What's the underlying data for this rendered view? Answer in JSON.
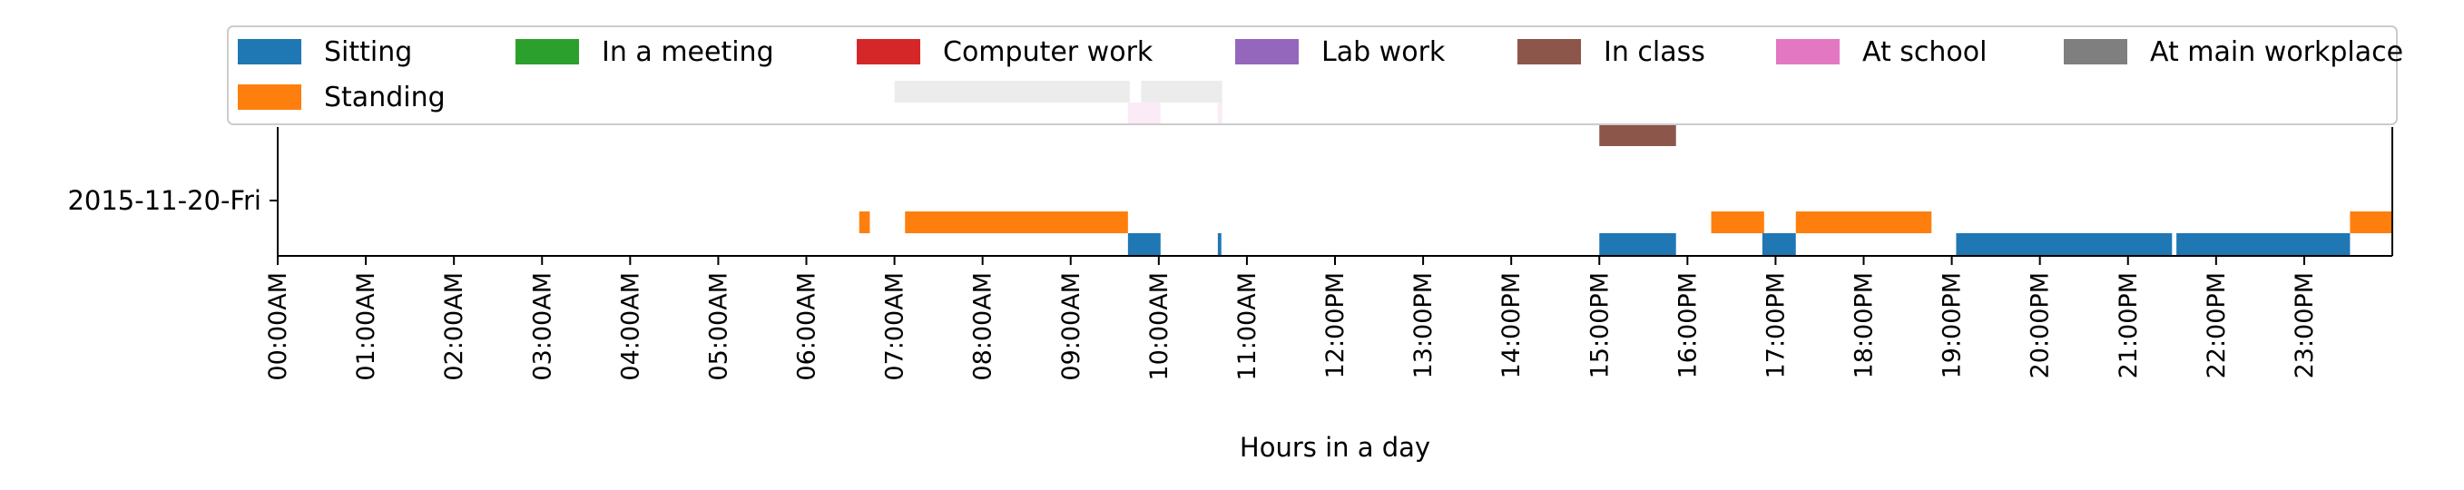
{
  "chart_data": {
    "type": "timeline",
    "xlabel": "Hours in a day",
    "row_label": "2015-11-20-Fri",
    "xlim": [
      0,
      24
    ],
    "x_ticks": [
      "00:00AM",
      "01:00AM",
      "02:00AM",
      "03:00AM",
      "04:00AM",
      "05:00AM",
      "06:00AM",
      "07:00AM",
      "08:00AM",
      "09:00AM",
      "10:00AM",
      "11:00AM",
      "12:00PM",
      "13:00PM",
      "14:00PM",
      "15:00PM",
      "16:00PM",
      "17:00PM",
      "18:00PM",
      "19:00PM",
      "20:00PM",
      "21:00PM",
      "22:00PM",
      "23:00PM"
    ],
    "legend": {
      "placement": "top",
      "columns": 7
    },
    "series": [
      {
        "name": "Sitting",
        "color": "#1f77b4",
        "lane": 0,
        "intervals": [
          [
            9.65,
            10.02
          ],
          [
            10.67,
            10.71
          ],
          [
            15.0,
            15.87
          ],
          [
            16.85,
            17.23
          ],
          [
            19.05,
            21.5
          ],
          [
            21.55,
            23.52
          ]
        ]
      },
      {
        "name": "Standing",
        "color": "#ff7f0e",
        "lane": 1,
        "intervals": [
          [
            6.6,
            6.72
          ],
          [
            7.12,
            9.65
          ],
          [
            16.27,
            16.87
          ],
          [
            17.23,
            18.77
          ],
          [
            23.52,
            24.0
          ]
        ]
      },
      {
        "name": "In a meeting",
        "color": "#2ca02c",
        "lane": 2,
        "intervals": []
      },
      {
        "name": "Computer work",
        "color": "#d62728",
        "lane": 3,
        "intervals": []
      },
      {
        "name": "Lab work",
        "color": "#9467bd",
        "lane": 4,
        "intervals": []
      },
      {
        "name": "In class",
        "color": "#8c564b",
        "lane": 5,
        "intervals": [
          [
            15.0,
            15.87
          ]
        ]
      },
      {
        "name": "At school",
        "color": "#e377c2",
        "lane": 6,
        "intervals": [
          [
            9.65,
            10.02
          ],
          [
            10.67,
            10.72
          ]
        ]
      },
      {
        "name": "At main workplace",
        "color": "#7f7f7f",
        "lane": 7,
        "intervals": [
          [
            7.0,
            9.67
          ],
          [
            9.8,
            10.72
          ]
        ]
      }
    ]
  }
}
